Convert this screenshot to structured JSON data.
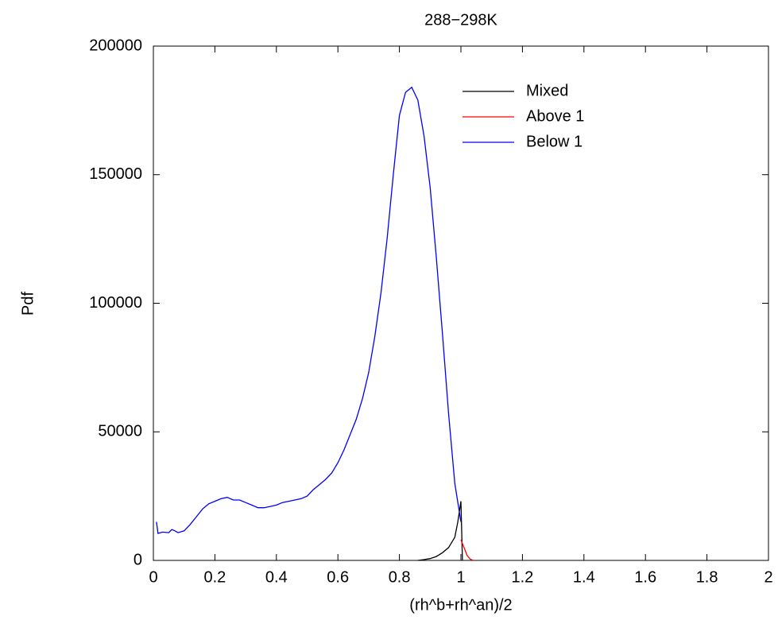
{
  "chart_data": {
    "type": "line",
    "title": "288−298K",
    "xlabel": "(rh^b+rh^an)/2",
    "ylabel": "Pdf",
    "xlim": [
      0,
      2
    ],
    "xticks": [
      0,
      0.2,
      0.4,
      0.6,
      0.8,
      1,
      1.2,
      1.4,
      1.6,
      1.8,
      2
    ],
    "ylim": [
      0,
      200000
    ],
    "yticks": [
      0,
      50000,
      100000,
      150000,
      200000
    ],
    "legend": "upper right",
    "series": [
      {
        "name": "Mixed",
        "color": "#000000",
        "x": [
          0.86,
          0.88,
          0.9,
          0.92,
          0.94,
          0.96,
          0.98,
          0.99,
          1.0,
          1.005
        ],
        "values": [
          0,
          300,
          700,
          1500,
          3000,
          5000,
          9000,
          15000,
          23000,
          0
        ]
      },
      {
        "name": "Above 1",
        "color": "#ff0000",
        "x": [
          1.0,
          1.01,
          1.02,
          1.03,
          1.04
        ],
        "values": [
          8000,
          5000,
          2000,
          500,
          0
        ]
      },
      {
        "name": "Below 1",
        "color": "#0000ff",
        "x": [
          0.01,
          0.015,
          0.03,
          0.05,
          0.06,
          0.07,
          0.08,
          0.1,
          0.12,
          0.14,
          0.16,
          0.18,
          0.2,
          0.22,
          0.24,
          0.26,
          0.28,
          0.3,
          0.32,
          0.34,
          0.36,
          0.38,
          0.4,
          0.42,
          0.44,
          0.46,
          0.48,
          0.5,
          0.52,
          0.54,
          0.56,
          0.58,
          0.6,
          0.62,
          0.64,
          0.66,
          0.68,
          0.7,
          0.72,
          0.74,
          0.76,
          0.78,
          0.8,
          0.82,
          0.84,
          0.86,
          0.88,
          0.9,
          0.92,
          0.94,
          0.96,
          0.98,
          1.0
        ],
        "values": [
          15000,
          10500,
          11000,
          10800,
          12000,
          11500,
          10800,
          11500,
          14000,
          17000,
          20000,
          22000,
          23000,
          24000,
          24500,
          23500,
          23500,
          22500,
          21500,
          20500,
          20500,
          21000,
          21500,
          22500,
          23000,
          23500,
          24000,
          25000,
          27500,
          29500,
          31500,
          34000,
          38000,
          43000,
          49000,
          55000,
          63000,
          73000,
          87000,
          104000,
          125000,
          150000,
          173000,
          182000,
          184000,
          179000,
          165000,
          145000,
          118000,
          88000,
          57000,
          30000,
          15000
        ]
      }
    ]
  }
}
